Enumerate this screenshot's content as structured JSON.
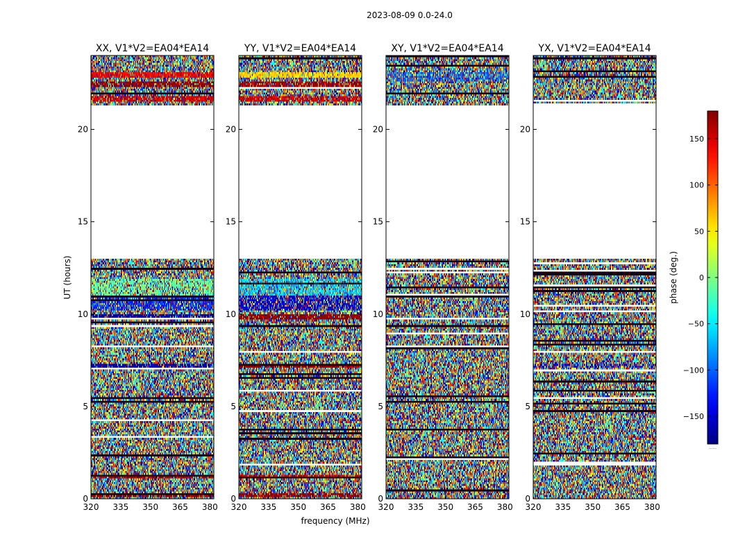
{
  "chart_data": {
    "type": "heatmap",
    "suptitle": "2023-08-09 0.0-24.0",
    "xlabel": "frequency (MHz)",
    "ylabel": "UT (hours)",
    "xlim": [
      320,
      382
    ],
    "ylim": [
      0,
      24
    ],
    "xticks": [
      320,
      335,
      350,
      365,
      380
    ],
    "yticks": [
      0,
      5,
      10,
      15,
      20
    ],
    "colorbar": {
      "label": "phase (deg.)",
      "range": [
        -180,
        180
      ],
      "ticks": [
        150,
        100,
        50,
        0,
        -50,
        -100,
        -150
      ],
      "tick_labels": [
        "150",
        "100",
        "50",
        "0",
        "−50",
        "−100",
        "−150"
      ],
      "colormap": "jet",
      "footer_text": "......"
    },
    "data_gap_hours": [
      13.0,
      21.3
    ],
    "panels": [
      {
        "title": "XX, V1*V2=EA04*EA14",
        "correlation": "XX",
        "features": [
          {
            "ut": [
              22.8,
              23.1
            ],
            "phase": 140,
            "strength": 0.85
          },
          {
            "ut": [
              22.3,
              22.6
            ],
            "phase": 175,
            "strength": 0.7
          },
          {
            "ut": [
              21.5,
              21.8
            ],
            "phase": 150,
            "strength": 0.75
          },
          {
            "ut": [
              11.0,
              11.9
            ],
            "phase": -10,
            "strength": 0.55
          },
          {
            "ut": [
              10.2,
              11.0
            ],
            "phase": -120,
            "strength": 0.55
          },
          {
            "ut": [
              9.75,
              9.95
            ],
            "phase": -170,
            "strength": 0.8
          },
          {
            "ut": [
              7.1,
              7.3
            ],
            "phase": -165,
            "strength": 0.75
          },
          {
            "ut": [
              1.1,
              1.25
            ],
            "phase": 165,
            "strength": 0.75
          },
          {
            "ut": [
              0.1,
              0.3
            ],
            "phase": 175,
            "strength": 0.7
          }
        ]
      },
      {
        "title": "YY, V1*V2=EA04*EA14",
        "correlation": "YY",
        "features": [
          {
            "ut": [
              22.8,
              23.1
            ],
            "phase": 60,
            "strength": 0.85
          },
          {
            "ut": [
              22.3,
              22.6
            ],
            "phase": 170,
            "strength": 0.7
          },
          {
            "ut": [
              21.5,
              21.8
            ],
            "phase": 150,
            "strength": 0.75
          },
          {
            "ut": [
              11.0,
              11.9
            ],
            "phase": -60,
            "strength": 0.55
          },
          {
            "ut": [
              10.2,
              11.0
            ],
            "phase": -150,
            "strength": 0.55
          },
          {
            "ut": [
              9.75,
              9.95
            ],
            "phase": 175,
            "strength": 0.8
          },
          {
            "ut": [
              7.1,
              7.3
            ],
            "phase": 170,
            "strength": 0.75
          },
          {
            "ut": [
              1.1,
              1.25
            ],
            "phase": 150,
            "strength": 0.75
          },
          {
            "ut": [
              0.1,
              0.3
            ],
            "phase": 170,
            "strength": 0.7
          }
        ]
      },
      {
        "title": "XY, V1*V2=EA04*EA14",
        "correlation": "XY",
        "features": [
          {
            "ut": [
              22.6,
              23.1
            ],
            "phase": -100,
            "strength": 0.45
          }
        ]
      },
      {
        "title": "YX, V1*V2=EA04*EA14",
        "correlation": "YX",
        "features": [
          {
            "ut": [
              7.1,
              7.3
            ],
            "phase": -150,
            "strength": 0.35
          }
        ]
      }
    ]
  }
}
